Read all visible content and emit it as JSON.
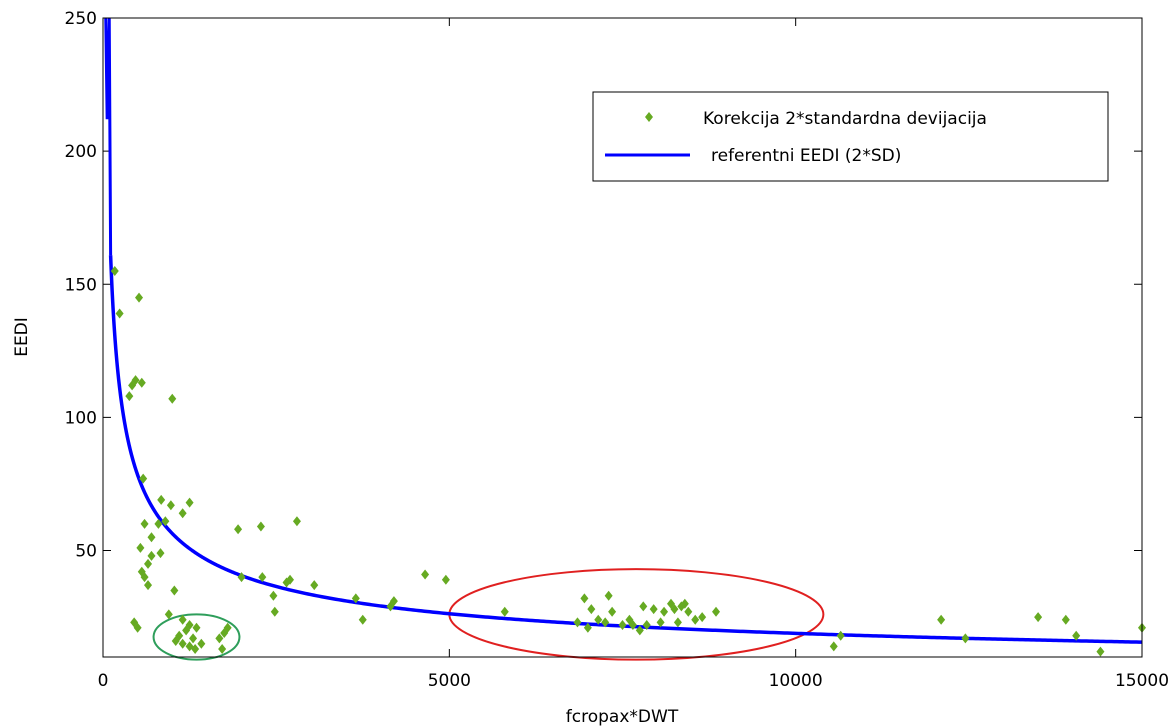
{
  "chart_data": {
    "type": "scatter",
    "title": "",
    "xlabel": "fcropax*DWT",
    "ylabel": "EEDI",
    "xlim": [
      0,
      15000
    ],
    "ylim": [
      10,
      250
    ],
    "xticks": [
      "0",
      "5000",
      "10000",
      "15000"
    ],
    "xtick_values": [
      0,
      5000,
      10000,
      15000
    ],
    "yticks": [
      "50",
      "100",
      "150",
      "200",
      "250"
    ],
    "ytick_values": [
      50,
      100,
      150,
      200,
      250
    ],
    "legend_position": "top-right",
    "series": [
      {
        "name": "Korekcija 2*standardna devijacija",
        "kind": "scatter",
        "color": "#66aa22",
        "marker": "diamond",
        "x": [
          170,
          240,
          380,
          420,
          470,
          520,
          560,
          580,
          600,
          650,
          700,
          840,
          900,
          980,
          1000,
          1030,
          1150,
          1250,
          540,
          560,
          600,
          650,
          700,
          800,
          830,
          950,
          1150,
          1250,
          1350,
          450,
          500,
          1050,
          1100,
          1150,
          1200,
          1250,
          1300,
          1330,
          1420,
          1680,
          1720,
          1750,
          1800,
          1950,
          2000,
          2280,
          2300,
          2460,
          2480,
          2650,
          2700,
          2800,
          3050,
          3650,
          3750,
          4150,
          4200,
          4650,
          4950,
          5800,
          6850,
          6950,
          7000,
          7050,
          7150,
          7250,
          7300,
          7350,
          7500,
          7600,
          7650,
          7750,
          7800,
          7850,
          7950,
          8050,
          8100,
          8200,
          8250,
          8300,
          8350,
          8400,
          8450,
          8550,
          8650,
          8850,
          10550,
          10650,
          12100,
          12450,
          13500,
          13900,
          14050,
          14400,
          15000
        ],
        "y": [
          155,
          139,
          108,
          112,
          114,
          145,
          113,
          77,
          60,
          45,
          55,
          69,
          61,
          67,
          107,
          35,
          64,
          68,
          51,
          42,
          40,
          37,
          48,
          60,
          49,
          26,
          24,
          22,
          21,
          23,
          21,
          16,
          18,
          15,
          20,
          14,
          17,
          13,
          15,
          17,
          13,
          19,
          21,
          58,
          40,
          59,
          40,
          33,
          27,
          38,
          39,
          61,
          37,
          32,
          24,
          29,
          31,
          41,
          39,
          27,
          23,
          32,
          21,
          28,
          24,
          23,
          33,
          27,
          22,
          24,
          22,
          20,
          29,
          22,
          28,
          23,
          27,
          30,
          28,
          23,
          29,
          30,
          27,
          24,
          25,
          27,
          14,
          18,
          24,
          17,
          25,
          24,
          18,
          12,
          21
        ]
      },
      {
        "name": "referentni EEDI (2*SD)",
        "kind": "line",
        "color": "#0000ff",
        "formula": "y = 1500 * x^-0.475"
      }
    ],
    "annotations": [
      {
        "shape": "ellipse",
        "color": "#2e9e5b",
        "cx": 1350,
        "cy": 17.5,
        "rx_data": 620,
        "ry_data": 8.5
      },
      {
        "shape": "ellipse",
        "color": "#e02020",
        "cx": 7700,
        "cy": 26,
        "rx_data": 2700,
        "ry_data": 17
      }
    ]
  }
}
